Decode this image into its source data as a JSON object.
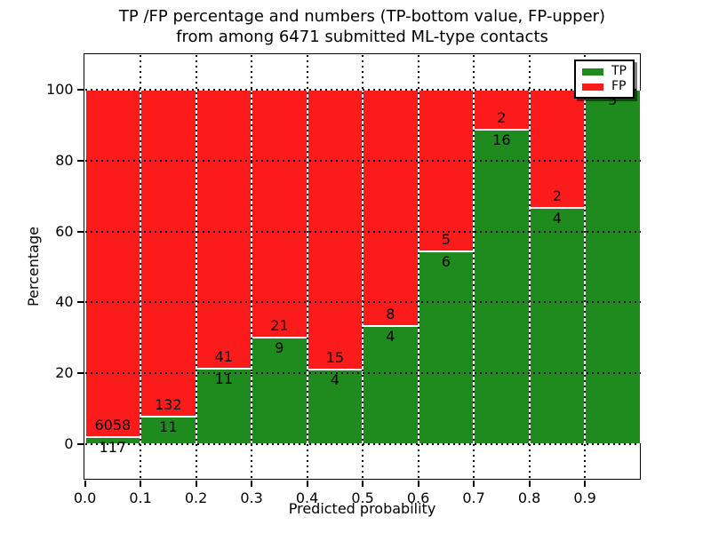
{
  "title": {
    "line1": "TP /FP percentage and numbers (TP-bottom value, FP-upper)",
    "line2": "from among 6471 submitted ML-type contacts"
  },
  "chart_data": {
    "type": "bar",
    "stacked": true,
    "units": "percent of bin total",
    "title": "TP /FP percentage and numbers (TP-bottom value, FP-upper) from among 6471 submitted ML-type contacts",
    "xlabel": "Predicted probability",
    "ylabel": "Percentage",
    "total_contacts": 6471,
    "xlim": [
      0.0,
      1.0
    ],
    "ylim": [
      -10,
      110
    ],
    "x_ticks": [
      0.0,
      0.1,
      0.2,
      0.3,
      0.4,
      0.5,
      0.6,
      0.7,
      0.8,
      0.9
    ],
    "x_tick_labels": [
      "0.0",
      "0.1",
      "0.2",
      "0.3",
      "0.4",
      "0.5",
      "0.6",
      "0.7",
      "0.8",
      "0.9"
    ],
    "y_ticks": [
      0,
      20,
      40,
      60,
      80,
      100
    ],
    "y_tick_labels": [
      "0",
      "20",
      "40",
      "60",
      "80",
      "100"
    ],
    "grid": "dotted",
    "colors": {
      "tp": "#1f8b1f",
      "fp": "#fb1b1b"
    },
    "legend": {
      "position": "upper right",
      "entries": [
        {
          "label": "TP",
          "color": "#1f8b1f"
        },
        {
          "label": "FP",
          "color": "#fb1b1b"
        }
      ]
    },
    "bins": [
      {
        "range": [
          0.0,
          0.1
        ],
        "tp": 117,
        "fp": 6058,
        "tp_percent": 1.9,
        "fp_percent": 98.1
      },
      {
        "range": [
          0.1,
          0.2
        ],
        "tp": 11,
        "fp": 132,
        "tp_percent": 7.7,
        "fp_percent": 92.3
      },
      {
        "range": [
          0.2,
          0.3
        ],
        "tp": 11,
        "fp": 41,
        "tp_percent": 21.2,
        "fp_percent": 78.8
      },
      {
        "range": [
          0.3,
          0.4
        ],
        "tp": 9,
        "fp": 21,
        "tp_percent": 30.0,
        "fp_percent": 70.0
      },
      {
        "range": [
          0.4,
          0.5
        ],
        "tp": 4,
        "fp": 15,
        "tp_percent": 21.1,
        "fp_percent": 78.9
      },
      {
        "range": [
          0.5,
          0.6
        ],
        "tp": 4,
        "fp": 8,
        "tp_percent": 33.3,
        "fp_percent": 66.7
      },
      {
        "range": [
          0.6,
          0.7
        ],
        "tp": 6,
        "fp": 5,
        "tp_percent": 54.5,
        "fp_percent": 45.5
      },
      {
        "range": [
          0.7,
          0.8
        ],
        "tp": 16,
        "fp": 2,
        "tp_percent": 88.9,
        "fp_percent": 11.1
      },
      {
        "range": [
          0.8,
          0.9
        ],
        "tp": 4,
        "fp": 2,
        "tp_percent": 66.7,
        "fp_percent": 33.3
      },
      {
        "range": [
          0.9,
          1.0
        ],
        "tp": 5,
        "fp": 0,
        "tp_percent": 100.0,
        "fp_percent": 0.0
      }
    ]
  }
}
